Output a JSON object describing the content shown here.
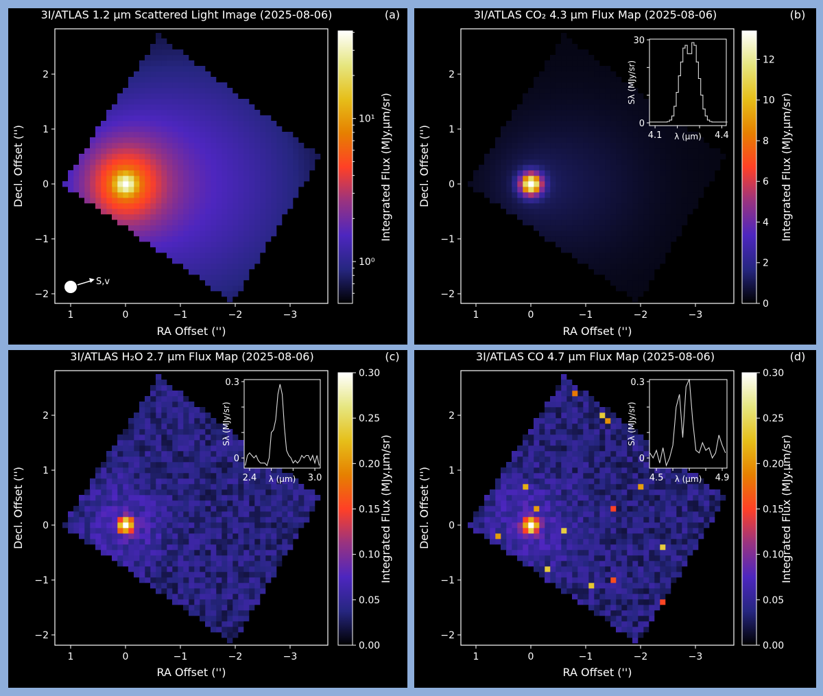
{
  "colormap_stops": [
    "#000000",
    "#262680",
    "#4d26bf",
    "#993380",
    "#ff4026",
    "#e68000",
    "#e6bf1a",
    "#e6e680",
    "#ffffff"
  ],
  "chart_data": [
    {
      "type": "heatmap",
      "panel_label": "(a)",
      "title": "3I/ATLAS 1.2 μm Scattered Light Image (2025-08-06)",
      "xlabel": "RA Offset ('')",
      "ylabel": "Decl. Offset ('')",
      "x_ticks": [
        1,
        0,
        -1,
        -2,
        -3
      ],
      "x_tick_labels": [
        "1",
        "0",
        "−1",
        "−2",
        "−3"
      ],
      "y_ticks": [
        -2,
        -1,
        0,
        1,
        2
      ],
      "y_tick_labels": [
        "−2",
        "−1",
        "0",
        "1",
        "2"
      ],
      "peak": {
        "ra": 0,
        "dec": 0
      },
      "colorbar": {
        "label": "Integrated Flux (MJy.μm/sr)",
        "scale": "log",
        "range": [
          0.51,
          41
        ],
        "ticks": [
          1,
          10
        ],
        "tick_labels": [
          "10⁰",
          "10¹"
        ]
      },
      "annotation": {
        "text": "S,v",
        "marker": "filled-circle",
        "arrow_direction": "toward negative RA"
      }
    },
    {
      "type": "heatmap",
      "panel_label": "(b)",
      "title": "3I/ATLAS CO₂ 4.3 μm Flux Map (2025-08-06)",
      "xlabel": "RA Offset ('')",
      "ylabel": "Decl. Offset ('')",
      "x_ticks": [
        1,
        0,
        -1,
        -2,
        -3
      ],
      "x_tick_labels": [
        "1",
        "0",
        "−1",
        "−2",
        "−3"
      ],
      "y_ticks": [
        -2,
        -1,
        0,
        1,
        2
      ],
      "y_tick_labels": [
        "−2",
        "−1",
        "0",
        "1",
        "2"
      ],
      "peak": {
        "ra": 0,
        "dec": 0
      },
      "colorbar": {
        "label": "Integrated Flux (MJy.μm/sr)",
        "scale": "linear",
        "range": [
          0,
          13.4
        ],
        "ticks": [
          0,
          2,
          4,
          6,
          8,
          10,
          12
        ],
        "tick_labels": [
          "0",
          "2",
          "4",
          "6",
          "8",
          "10",
          "12"
        ]
      },
      "inset": {
        "type": "line",
        "xlabel": "λ (μm)",
        "ylabel": "Sλ (MJy/sr)",
        "xlim": [
          4.075,
          4.42
        ],
        "ylim": [
          -1,
          30.25
        ],
        "x_ticks": [
          4.1,
          4.2,
          4.3,
          4.4
        ],
        "x_tick_labels": [
          "4.1",
          "",
          "",
          "4.4"
        ],
        "y_ticks": [
          0,
          10,
          20,
          30
        ],
        "y_tick_labels": [
          "0",
          "",
          "",
          "30"
        ],
        "x": [
          4.08,
          4.09,
          4.1,
          4.11,
          4.12,
          4.13,
          4.14,
          4.15,
          4.16,
          4.17,
          4.18,
          4.19,
          4.2,
          4.21,
          4.22,
          4.23,
          4.24,
          4.25,
          4.26,
          4.27,
          4.28,
          4.29,
          4.3,
          4.31,
          4.32,
          4.33,
          4.34,
          4.35,
          4.36,
          4.37,
          4.38,
          4.39,
          4.4,
          4.41,
          4.42
        ],
        "y": [
          0.3,
          0.3,
          0.3,
          0.3,
          0.3,
          0.3,
          0.3,
          0.3,
          0.5,
          1,
          2.5,
          6,
          11,
          17,
          22,
          27,
          28,
          25,
          25,
          29,
          28,
          22,
          16,
          10,
          5,
          2.5,
          1,
          0.5,
          0.3,
          0.3,
          0.3,
          0.3,
          0.3,
          0.3,
          0.3
        ]
      }
    },
    {
      "type": "heatmap",
      "panel_label": "(c)",
      "title": "3I/ATLAS H₂O 2.7 μm Flux Map (2025-08-06)",
      "xlabel": "RA Offset ('')",
      "ylabel": "Decl. Offset ('')",
      "x_ticks": [
        1,
        0,
        -1,
        -2,
        -3
      ],
      "x_tick_labels": [
        "1",
        "0",
        "−1",
        "−2",
        "−3"
      ],
      "y_ticks": [
        -2,
        -1,
        0,
        1,
        2
      ],
      "y_tick_labels": [
        "−2",
        "−1",
        "0",
        "1",
        "2"
      ],
      "peak": {
        "ra": 0,
        "dec": 0
      },
      "colorbar": {
        "label": "Integrated Flux (MJy.μm/sr)",
        "scale": "linear",
        "range": [
          0,
          0.3
        ],
        "ticks": [
          0,
          0.05,
          0.1,
          0.15,
          0.2,
          0.25,
          0.3
        ],
        "tick_labels": [
          "0.00",
          "0.05",
          "0.10",
          "0.15",
          "0.20",
          "0.25",
          "0.30"
        ]
      },
      "inset": {
        "type": "line",
        "xlabel": "λ (μm)",
        "ylabel": "Sλ (MJy/sr)",
        "xlim": [
          2.35,
          3.05
        ],
        "ylim": [
          -0.04,
          0.308
        ],
        "x_ticks": [
          2.4,
          2.6,
          2.8,
          3.0
        ],
        "x_tick_labels": [
          "2.4",
          "",
          "",
          "3.0"
        ],
        "y_ticks": [
          0,
          0.1,
          0.2,
          0.3
        ],
        "y_tick_labels": [
          "0",
          "",
          "",
          "0.3"
        ],
        "x": [
          2.36,
          2.38,
          2.4,
          2.42,
          2.44,
          2.46,
          2.48,
          2.5,
          2.52,
          2.54,
          2.56,
          2.58,
          2.6,
          2.62,
          2.64,
          2.66,
          2.68,
          2.7,
          2.72,
          2.74,
          2.76,
          2.78,
          2.8,
          2.82,
          2.84,
          2.86,
          2.88,
          2.9,
          2.92,
          2.94,
          2.96,
          2.98,
          3.0,
          3.02,
          3.04
        ],
        "y": [
          -0.03,
          0.01,
          0.02,
          0.01,
          0.0,
          0.01,
          -0.01,
          -0.02,
          -0.02,
          -0.02,
          -0.03,
          0.0,
          0.1,
          0.11,
          0.15,
          0.25,
          0.29,
          0.25,
          0.12,
          0.03,
          0.01,
          0.0,
          -0.02,
          -0.01,
          -0.02,
          -0.01,
          0.01,
          0.0,
          0.01,
          0.01,
          -0.01,
          0.01,
          -0.02,
          0.01,
          -0.03
        ]
      }
    },
    {
      "type": "heatmap",
      "panel_label": "(d)",
      "title": "3I/ATLAS CO 4.7 μm Flux Map (2025-08-06)",
      "xlabel": "RA Offset ('')",
      "ylabel": "Decl. Offset ('')",
      "x_ticks": [
        1,
        0,
        -1,
        -2,
        -3
      ],
      "x_tick_labels": [
        "1",
        "0",
        "−1",
        "−2",
        "−3"
      ],
      "y_ticks": [
        -2,
        -1,
        0,
        1,
        2
      ],
      "y_tick_labels": [
        "−2",
        "−1",
        "0",
        "1",
        "2"
      ],
      "peak": {
        "ra": 0,
        "dec": 0
      },
      "colorbar": {
        "label": "Integrated Flux (MJy.μm/sr)",
        "scale": "linear",
        "range": [
          0,
          0.3
        ],
        "ticks": [
          0,
          0.05,
          0.1,
          0.15,
          0.2,
          0.25,
          0.3
        ],
        "tick_labels": [
          "0.00",
          "0.05",
          "0.10",
          "0.15",
          "0.20",
          "0.25",
          "0.30"
        ]
      },
      "inset": {
        "type": "line",
        "xlabel": "λ (μm)",
        "ylabel": "Sλ (MJy/sr)",
        "xlim": [
          4.458,
          4.929
        ],
        "ylim": [
          -0.04,
          0.308
        ],
        "x_ticks": [
          4.5,
          4.6,
          4.7,
          4.8,
          4.9
        ],
        "x_tick_labels": [
          "4.5",
          "",
          "",
          "",
          "4.9"
        ],
        "y_ticks": [
          0,
          0.1,
          0.2,
          0.3
        ],
        "y_tick_labels": [
          "0",
          "",
          "",
          "0.3"
        ],
        "x": [
          4.46,
          4.48,
          4.5,
          4.52,
          4.54,
          4.56,
          4.58,
          4.6,
          4.62,
          4.64,
          4.66,
          4.68,
          4.7,
          4.72,
          4.74,
          4.76,
          4.78,
          4.8,
          4.82,
          4.84,
          4.86,
          4.88,
          4.9,
          4.92
        ],
        "y": [
          0.02,
          0.0,
          0.03,
          -0.02,
          0.04,
          -0.03,
          0.0,
          0.05,
          0.2,
          0.25,
          0.08,
          0.28,
          0.31,
          0.15,
          0.03,
          0.02,
          0.06,
          0.03,
          0.04,
          0.0,
          0.02,
          0.09,
          0.05,
          0.02
        ]
      }
    }
  ]
}
